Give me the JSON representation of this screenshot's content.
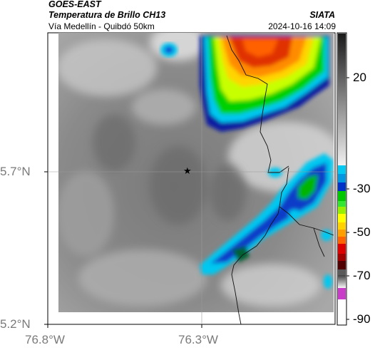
{
  "header": {
    "satellite": "GOES-EAST",
    "product": "Temperatura de Brillo CH13",
    "route": "Vía Medellín - Quibdó 50km",
    "org": "SIATA",
    "timestamp": "2024-10-16 14:09"
  },
  "map": {
    "lat_labels": [
      "5.7°N",
      "5.2°N"
    ],
    "lon_labels": [
      "76.8°W",
      "76.3°W"
    ],
    "marker_icon": "star-icon",
    "gridlines": true
  },
  "colorbar": {
    "ticks": [
      "20",
      "-30",
      "-50",
      "-70",
      "-90"
    ],
    "colors": {
      "warm_gray_top": "#1a1a1a",
      "warm_gray_bottom": "#f0f0f0",
      "cyan": "#00c8f0",
      "blue": "#0032c8",
      "green": "#00c800",
      "yellow": "#ffff00",
      "orange": "#ff8c00",
      "red": "#dc0000",
      "dark_red": "#500000",
      "magenta": "#c83cc8"
    }
  }
}
